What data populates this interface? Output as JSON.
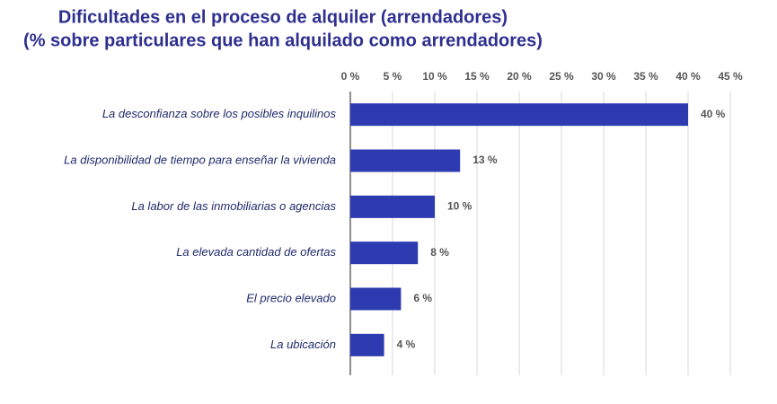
{
  "chart_data": {
    "type": "bar",
    "orientation": "horizontal",
    "title_lines": [
      "Dificultades en el proceso de alquiler (arrendadores)",
      "(% sobre particulares que han alquilado como arrendadores)"
    ],
    "categories": [
      "La desconfianza sobre los posibles inquilinos",
      "La disponibilidad de tiempo para enseñar la vivienda",
      "La labor de las inmobiliarias o agencias",
      "La elevada cantidad de ofertas",
      "El precio elevado",
      "La ubicación"
    ],
    "values": [
      40,
      13,
      10,
      8,
      6,
      4
    ],
    "value_labels": [
      "40 %",
      "13 %",
      "10 %",
      "8 %",
      "6 %",
      "4 %"
    ],
    "color": "#2e3ab0",
    "xlim": [
      0,
      45
    ],
    "xticks": [
      {
        "value": 0,
        "label": "0 %"
      },
      {
        "value": 5,
        "label": "5 %"
      },
      {
        "value": 10,
        "label": "10 %"
      },
      {
        "value": 15,
        "label": "15 %"
      },
      {
        "value": 20,
        "label": "20 %"
      },
      {
        "value": 25,
        "label": "25 %"
      },
      {
        "value": 30,
        "label": "30 %"
      },
      {
        "value": 35,
        "label": "35 %"
      },
      {
        "value": 40,
        "label": "40 %"
      },
      {
        "value": 45,
        "label": "45 %"
      }
    ],
    "grid": true
  }
}
